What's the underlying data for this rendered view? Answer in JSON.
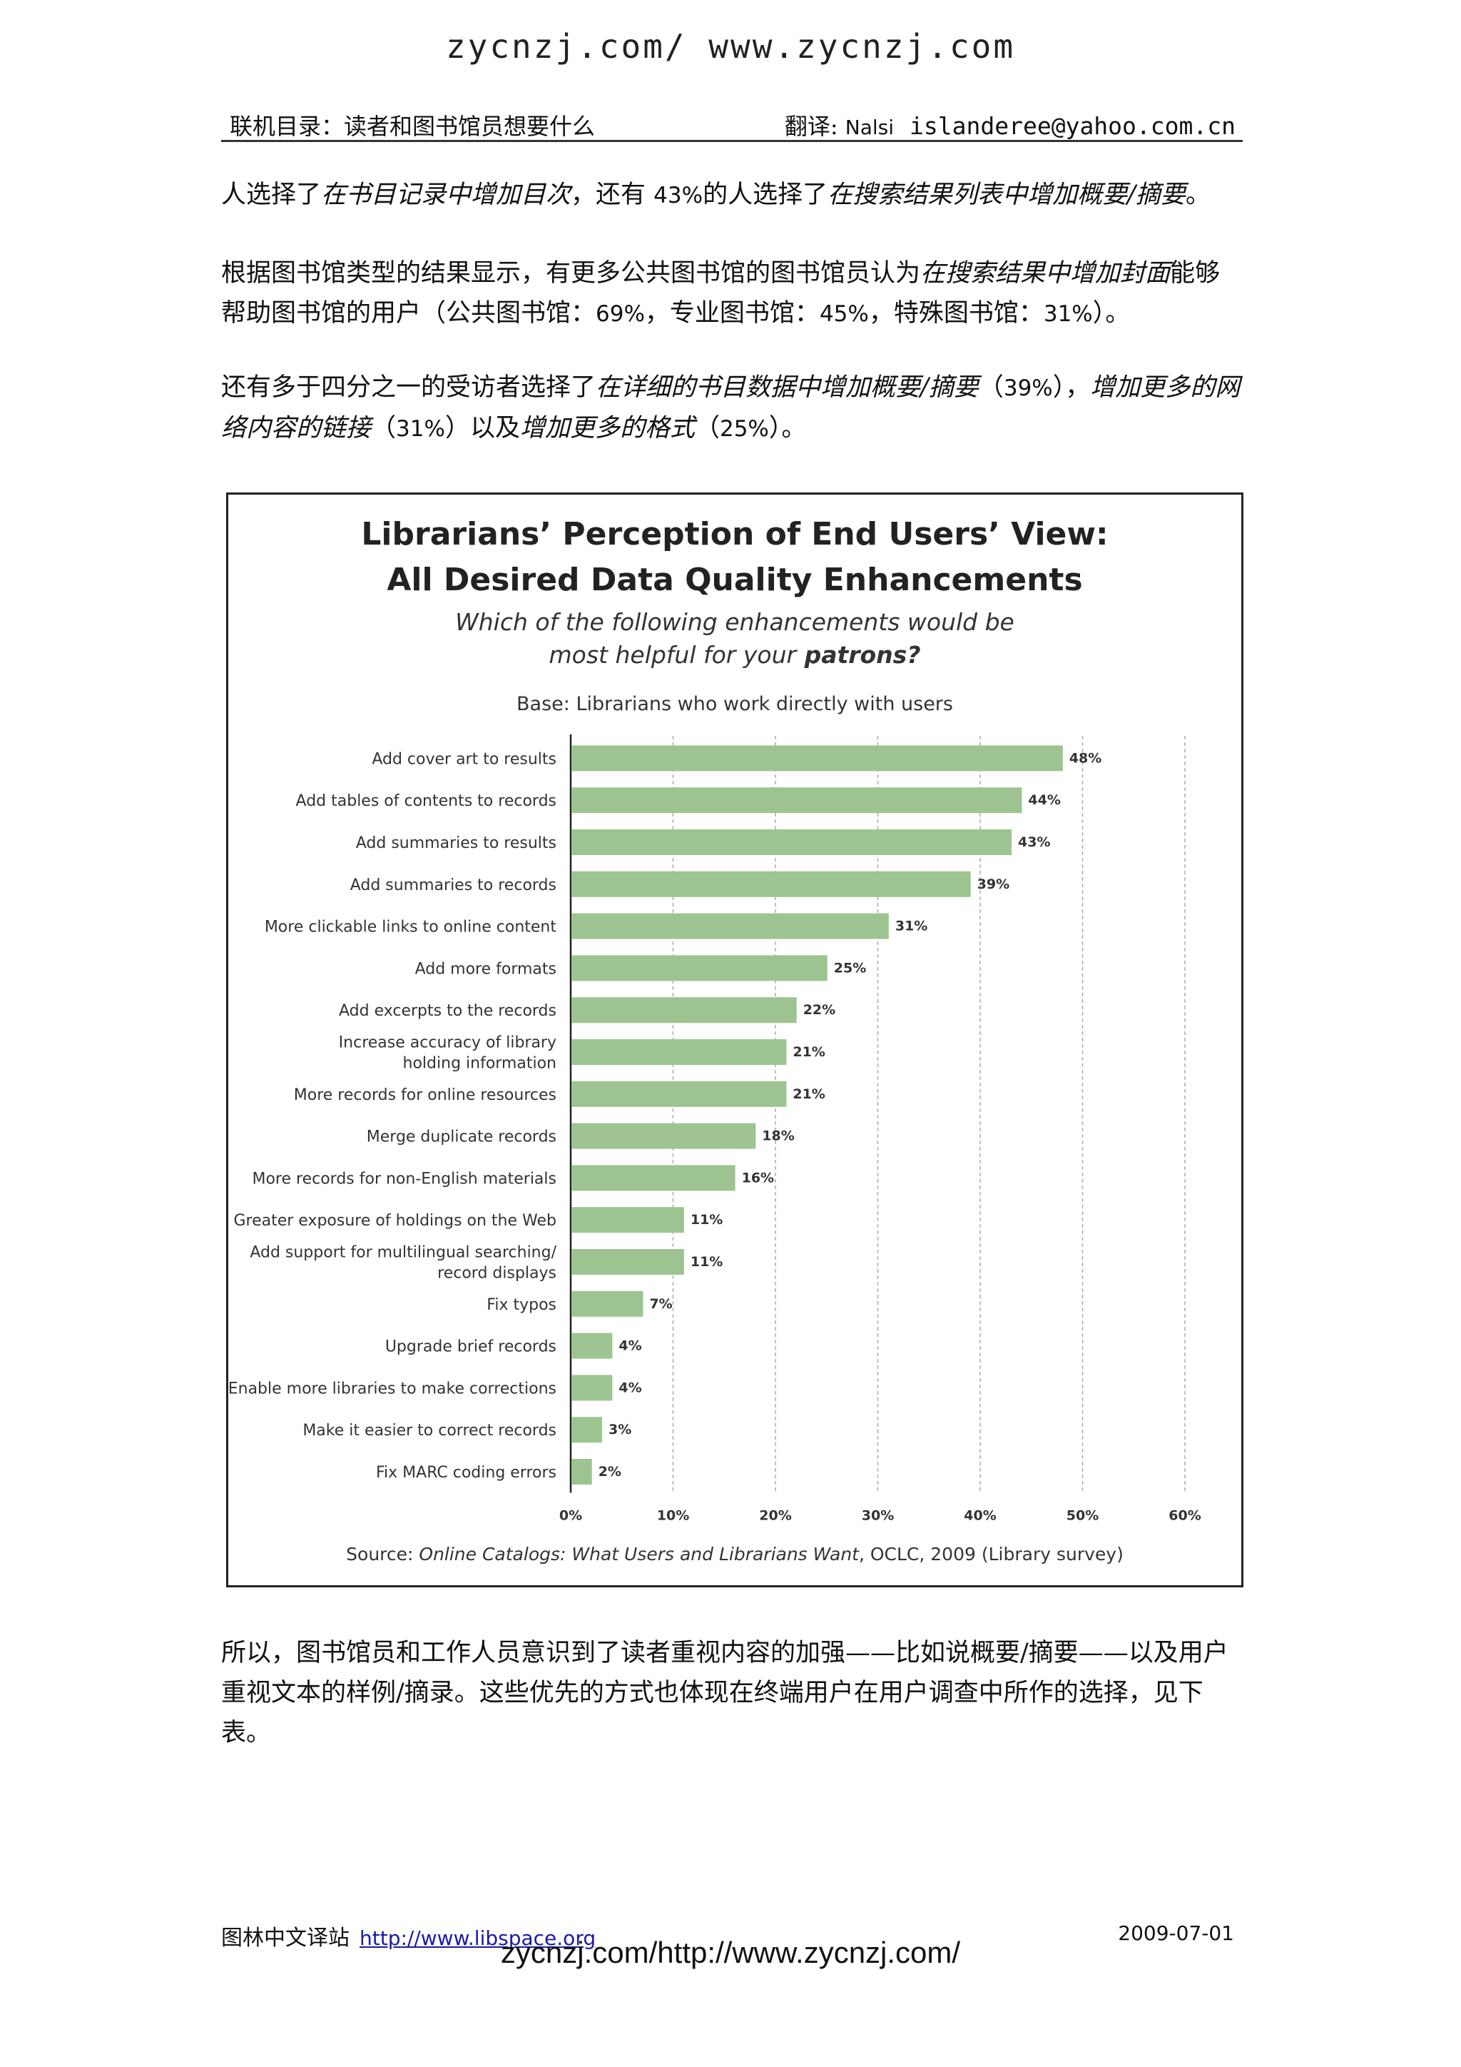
{
  "watermark_top": "zycnzj.com/ www.zycnzj.com",
  "header": {
    "left": "联机目录：读者和图书馆员想要什么",
    "right_label": "翻译: ",
    "translator": "Nalsi",
    "email": "islanderee@yahoo.com.cn"
  },
  "para1": {
    "a": "人选择了",
    "b": "在书目记录中增加目次",
    "c": "，还有 ",
    "d": "43%",
    "e": "的人选择了",
    "f": "在搜索结果列表中增加概要",
    "g": "/",
    "h": "摘要",
    "i": "。"
  },
  "para2": {
    "a": "根据图书馆类型的结果显示，有更多公共图书馆的图书馆员认为",
    "b": "在搜索结果中增加封面",
    "c": "能够帮助图书馆的用户（公共图书馆：",
    "d": "69%",
    "e": "，专业图书馆：",
    "f": "45%",
    "g": "，特殊图书馆：",
    "h": "31%",
    "i": "）。"
  },
  "para3": {
    "a": "还有多于四分之一的受访者选择了",
    "b": "在详细的书目数据中增加概要",
    "c": "/",
    "d": "摘要",
    "e": "（",
    "f": "39%",
    "g": "），",
    "h": "增加更多的网络内容的链接",
    "i": "（",
    "j": "31%",
    "k": "）以及",
    "l": "增加更多的格式",
    "m": "（",
    "n": "25%",
    "o": "）。"
  },
  "para4": "所以，图书馆员和工作人员意识到了读者重视内容的加强——比如说概要/摘要——以及用户重视文本的样例/摘录。这些优先的方式也体现在终端用户在用户调查中所作的选择，见下表。",
  "footer": {
    "left": "图林中文译站",
    "link": "http://www.libspace.org",
    "date": "2009-07-01"
  },
  "watermark_bottom": "zycnzj.com/http://www.zycnzj.com/",
  "chart_data": {
    "type": "bar",
    "orientation": "horizontal",
    "title": [
      "Librarians’ Perception of End Users’ View:",
      "All Desired Data Quality Enhancements"
    ],
    "subtitle": [
      "Which of the following enhancements would be",
      "most helpful for your"
    ],
    "subtitle_bold": "patrons?",
    "base": "Base: Librarians who work directly with users",
    "categories": [
      [
        "Add cover art to results"
      ],
      [
        "Add tables of contents to records"
      ],
      [
        "Add summaries to results"
      ],
      [
        "Add summaries to records"
      ],
      [
        "More clickable links to online content"
      ],
      [
        "Add more formats"
      ],
      [
        "Add excerpts to the records"
      ],
      [
        "Increase accuracy of library",
        "holding information"
      ],
      [
        "More records for online resources"
      ],
      [
        "Merge duplicate records"
      ],
      [
        "More records for non-English materials"
      ],
      [
        "Greater exposure of holdings on the Web"
      ],
      [
        "Add support for multilingual searching/",
        "record displays"
      ],
      [
        "Fix typos"
      ],
      [
        "Upgrade brief records"
      ],
      [
        "Enable more libraries to make corrections"
      ],
      [
        "Make it easier to correct records"
      ],
      [
        "Fix MARC coding errors"
      ]
    ],
    "values": [
      48,
      44,
      43,
      39,
      31,
      25,
      22,
      21,
      21,
      18,
      16,
      11,
      11,
      7,
      4,
      4,
      3,
      2
    ],
    "value_labels": [
      "48%",
      "44%",
      "43%",
      "39%",
      "31%",
      "25%",
      "22%",
      "21%",
      "21%",
      "18%",
      "16%",
      "11%",
      "11%",
      "7%",
      "4%",
      "4%",
      "3%",
      "2%"
    ],
    "xlim": [
      0,
      60
    ],
    "ticks": [
      0,
      10,
      20,
      30,
      40,
      50,
      60
    ],
    "tick_labels": [
      "0%",
      "10%",
      "20%",
      "30%",
      "40%",
      "50%",
      "60%"
    ],
    "grid": true,
    "bar_color": "#9dc490",
    "source_prefix": "Source: ",
    "source_italic": "Online Catalogs: What Users and Librarians Want",
    "source_suffix": ", OCLC, 2009 (Library survey)"
  }
}
